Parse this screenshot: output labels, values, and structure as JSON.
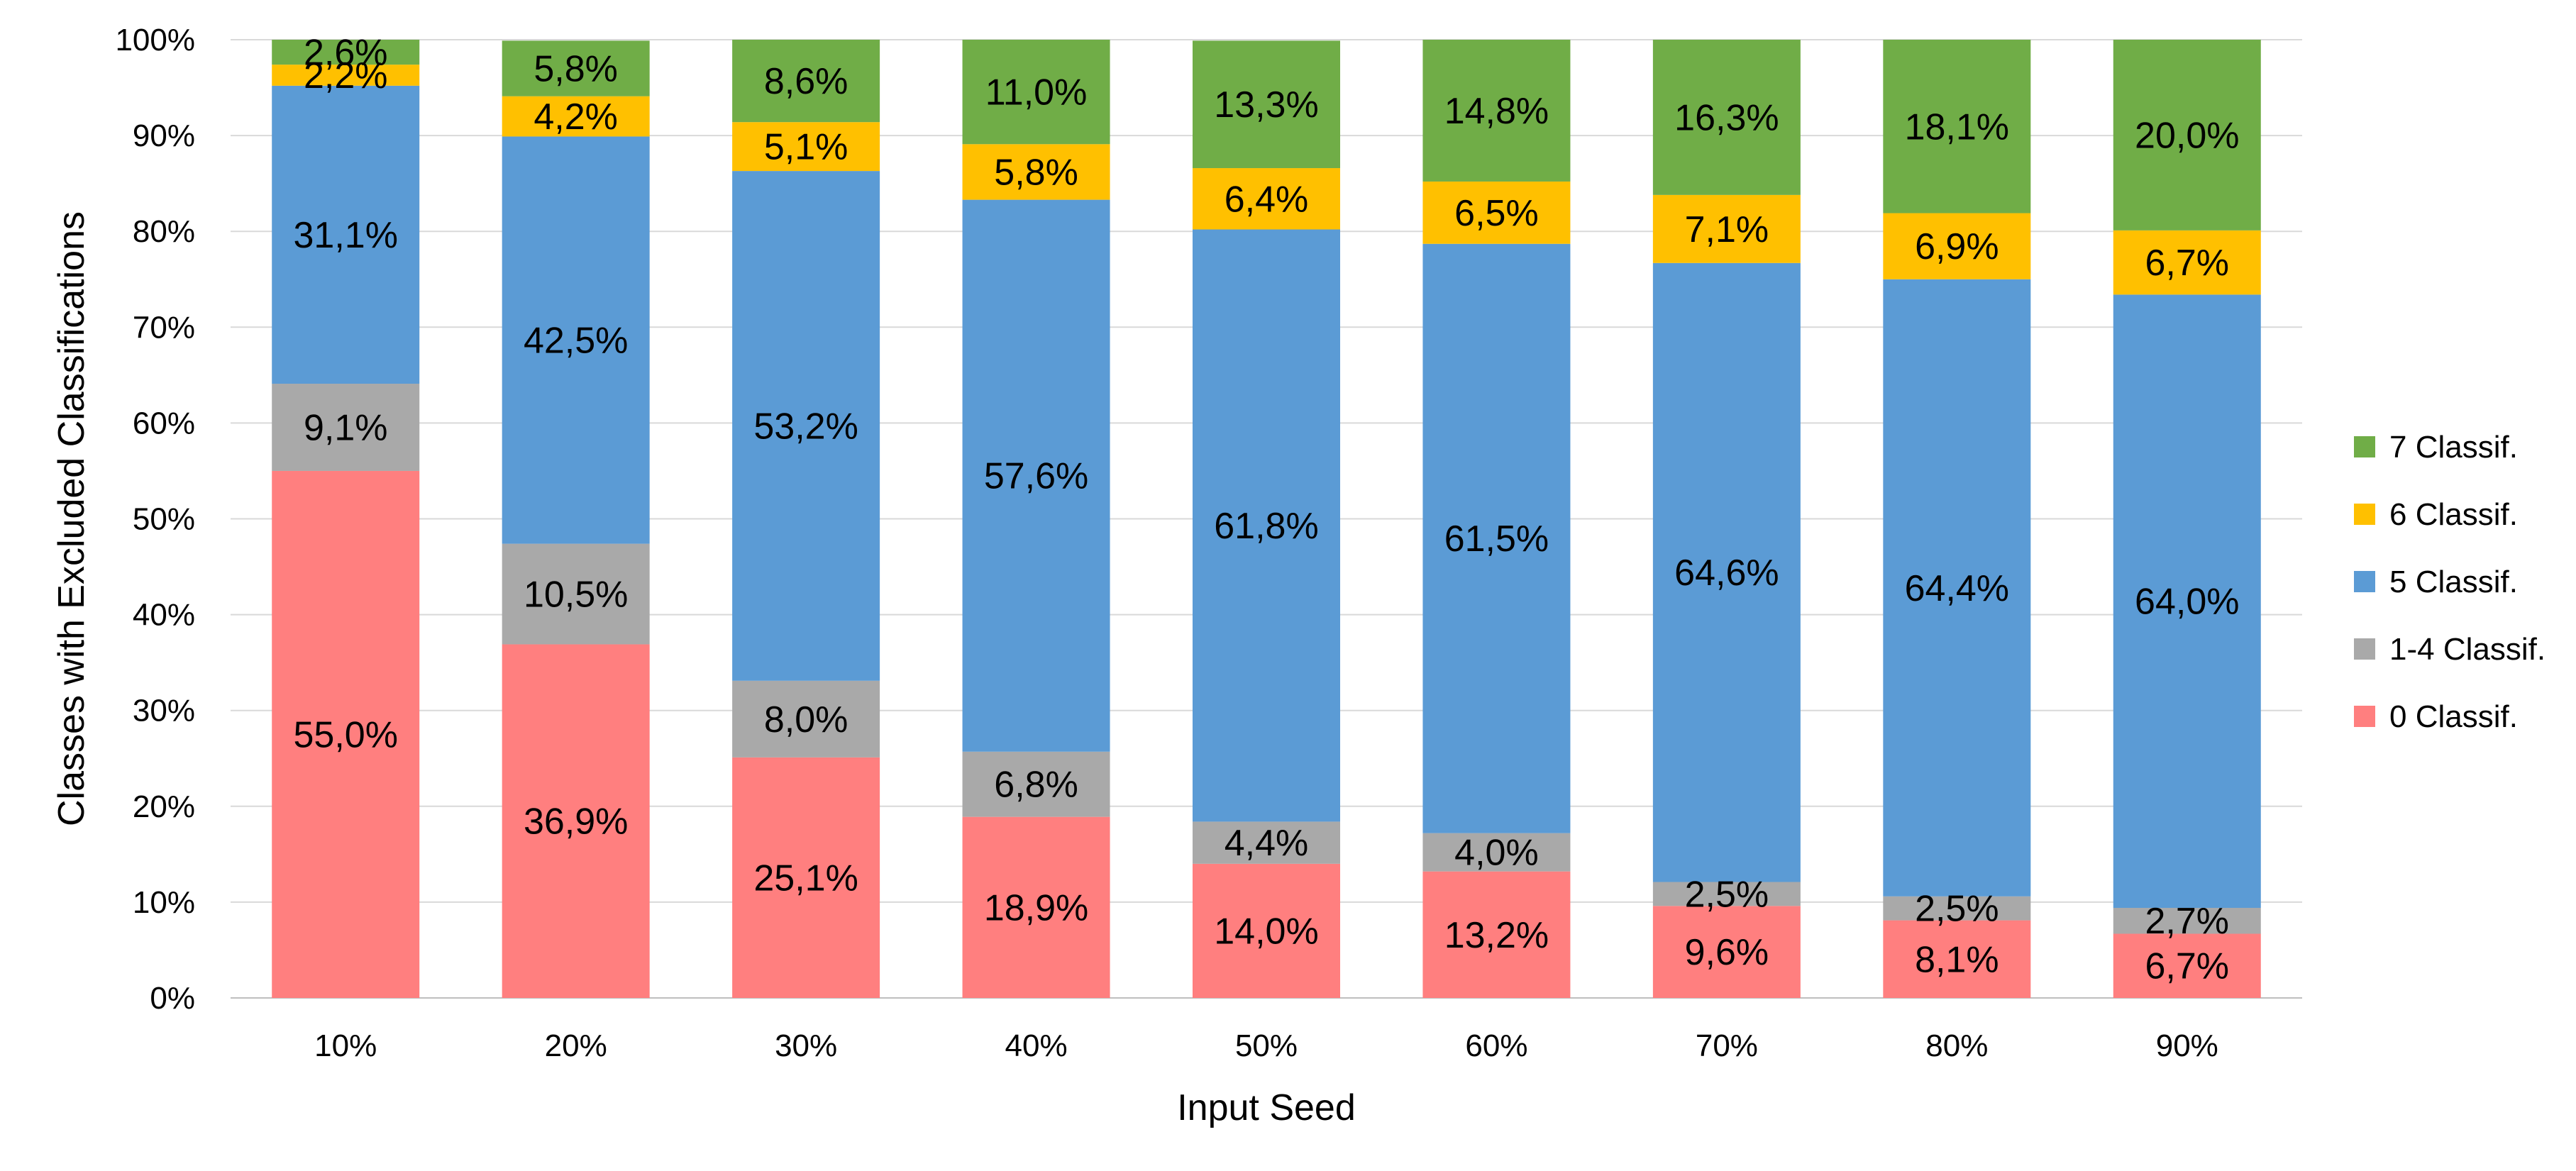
{
  "chart_data": {
    "type": "bar",
    "stacked": true,
    "categories": [
      "10%",
      "20%",
      "30%",
      "40%",
      "50%",
      "60%",
      "70%",
      "80%",
      "90%"
    ],
    "series": [
      {
        "name": "0 Classif.",
        "color": "#FF7F7F",
        "values": [
          55.0,
          36.9,
          25.1,
          18.9,
          14.0,
          13.2,
          9.6,
          8.1,
          6.7
        ],
        "labels": [
          "55,0%",
          "36,9%",
          "25,1%",
          "18,9%",
          "14,0%",
          "13,2%",
          "9,6%",
          "8,1%",
          "6,7%"
        ]
      },
      {
        "name": "1-4 Classif.",
        "color": "#A9A9A9",
        "values": [
          9.1,
          10.5,
          8.0,
          6.8,
          4.4,
          4.0,
          2.5,
          2.5,
          2.7
        ],
        "labels": [
          "9,1%",
          "10,5%",
          "8,0%",
          "6,8%",
          "4,4%",
          "4,0%",
          "2,5%",
          "2,5%",
          "2,7%"
        ]
      },
      {
        "name": "5 Classif.",
        "color": "#5B9BD5",
        "values": [
          31.1,
          42.5,
          53.2,
          57.6,
          61.8,
          61.5,
          64.6,
          64.4,
          64.0
        ],
        "labels": [
          "31,1%",
          "42,5%",
          "53,2%",
          "57,6%",
          "61,8%",
          "61,5%",
          "64,6%",
          "64,4%",
          "64,0%"
        ]
      },
      {
        "name": "6 Classif.",
        "color": "#FFC000",
        "values": [
          2.2,
          4.2,
          5.1,
          5.8,
          6.4,
          6.5,
          7.1,
          6.9,
          6.7
        ],
        "labels": [
          "2,2%",
          "4,2%",
          "5,1%",
          "5,8%",
          "6,4%",
          "6,5%",
          "7,1%",
          "6,9%",
          "6,7%"
        ]
      },
      {
        "name": "7 Classif.",
        "color": "#70AD47",
        "values": [
          2.6,
          5.8,
          8.6,
          11.0,
          13.3,
          14.8,
          16.3,
          18.1,
          20.0
        ],
        "labels": [
          "2,6%",
          "5,8%",
          "8,6%",
          "11,0%",
          "13,3%",
          "14,8%",
          "16,3%",
          "18,1%",
          "20,0%"
        ]
      }
    ],
    "xlabel": "Input Seed",
    "ylabel": "Classes with Excluded Classifications",
    "ylim": [
      0,
      100
    ],
    "yticks": [
      "0%",
      "10%",
      "20%",
      "30%",
      "40%",
      "50%",
      "60%",
      "70%",
      "80%",
      "90%",
      "100%"
    ],
    "grid": true,
    "legend_position": "right",
    "legend_order": [
      "7 Classif.",
      "6 Classif.",
      "5 Classif.",
      "1-4 Classif.",
      "0 Classif."
    ]
  }
}
